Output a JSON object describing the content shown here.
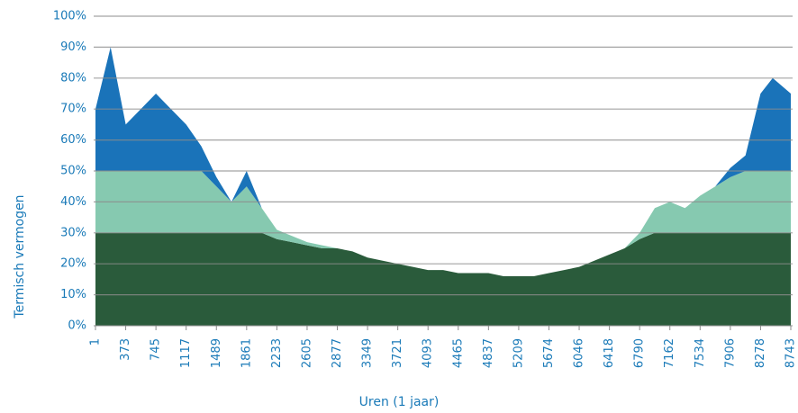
{
  "chart_data": {
    "type": "stacked_area",
    "y_label": "Termisch vermogen",
    "x_label": "Uren (1 jaar)",
    "x": [
      1,
      187,
      373,
      559,
      745,
      931,
      1117,
      1303,
      1489,
      1675,
      1861,
      2047,
      2233,
      2419,
      2605,
      2741,
      2877,
      3113,
      3349,
      3535,
      3721,
      3907,
      4093,
      4279,
      4465,
      4651,
      4837,
      5023,
      5209,
      5441,
      5674,
      5860,
      6046,
      6232,
      6418,
      6604,
      6790,
      6976,
      7162,
      7348,
      7534,
      7720,
      7906,
      8092,
      8278,
      8464,
      8743
    ],
    "series": [
      {
        "color": "#2a5b3b",
        "values": [
          30,
          30,
          30,
          30,
          30,
          30,
          30,
          30,
          30,
          30,
          30,
          30,
          28,
          27,
          26,
          25,
          25,
          24,
          22,
          21,
          20,
          19,
          18,
          18,
          17,
          17,
          17,
          16,
          16,
          16,
          17,
          18,
          19,
          21,
          23,
          25,
          28,
          30,
          30,
          30,
          30,
          30,
          30,
          30,
          30,
          30,
          30
        ]
      },
      {
        "color": "#86c9b0",
        "values": [
          20,
          20,
          20,
          20,
          20,
          20,
          20,
          20,
          15,
          10,
          15,
          8,
          3,
          2,
          1,
          1,
          0,
          0,
          0,
          0,
          0,
          0,
          0,
          0,
          0,
          0,
          0,
          0,
          0,
          0,
          0,
          0,
          0,
          0,
          0,
          0,
          2,
          8,
          10,
          8,
          12,
          15,
          18,
          20,
          20,
          20,
          20
        ]
      },
      {
        "color": "#1a73b9",
        "values": [
          20,
          40,
          15,
          20,
          25,
          20,
          15,
          8,
          3,
          0,
          5,
          0,
          0,
          0,
          0,
          0,
          0,
          0,
          0,
          0,
          0,
          0,
          0,
          0,
          0,
          0,
          0,
          0,
          0,
          0,
          0,
          0,
          0,
          0,
          0,
          0,
          0,
          0,
          0,
          0,
          0,
          0,
          3,
          5,
          25,
          30,
          25
        ]
      }
    ],
    "xlim": [
      1,
      8743
    ],
    "xticks": [
      1,
      373,
      745,
      1117,
      1489,
      1861,
      2233,
      2605,
      2877,
      3349,
      3721,
      4093,
      4465,
      4837,
      5209,
      5674,
      6046,
      6418,
      6790,
      7162,
      7534,
      7906,
      8278,
      8743
    ],
    "ylim": [
      0,
      100
    ],
    "yticks": [
      {
        "value": 0,
        "label": "0%"
      },
      {
        "value": 10,
        "label": "10%"
      },
      {
        "value": 20,
        "label": "20%"
      },
      {
        "value": 30,
        "label": "30%"
      },
      {
        "value": 40,
        "label": "40%"
      },
      {
        "value": 50,
        "label": "50%"
      },
      {
        "value": 60,
        "label": "60%"
      },
      {
        "value": 70,
        "label": "70%"
      },
      {
        "value": 80,
        "label": "80%"
      },
      {
        "value": 90,
        "label": "90%"
      },
      {
        "value": 100,
        "label": "100%"
      }
    ],
    "grid": true
  }
}
